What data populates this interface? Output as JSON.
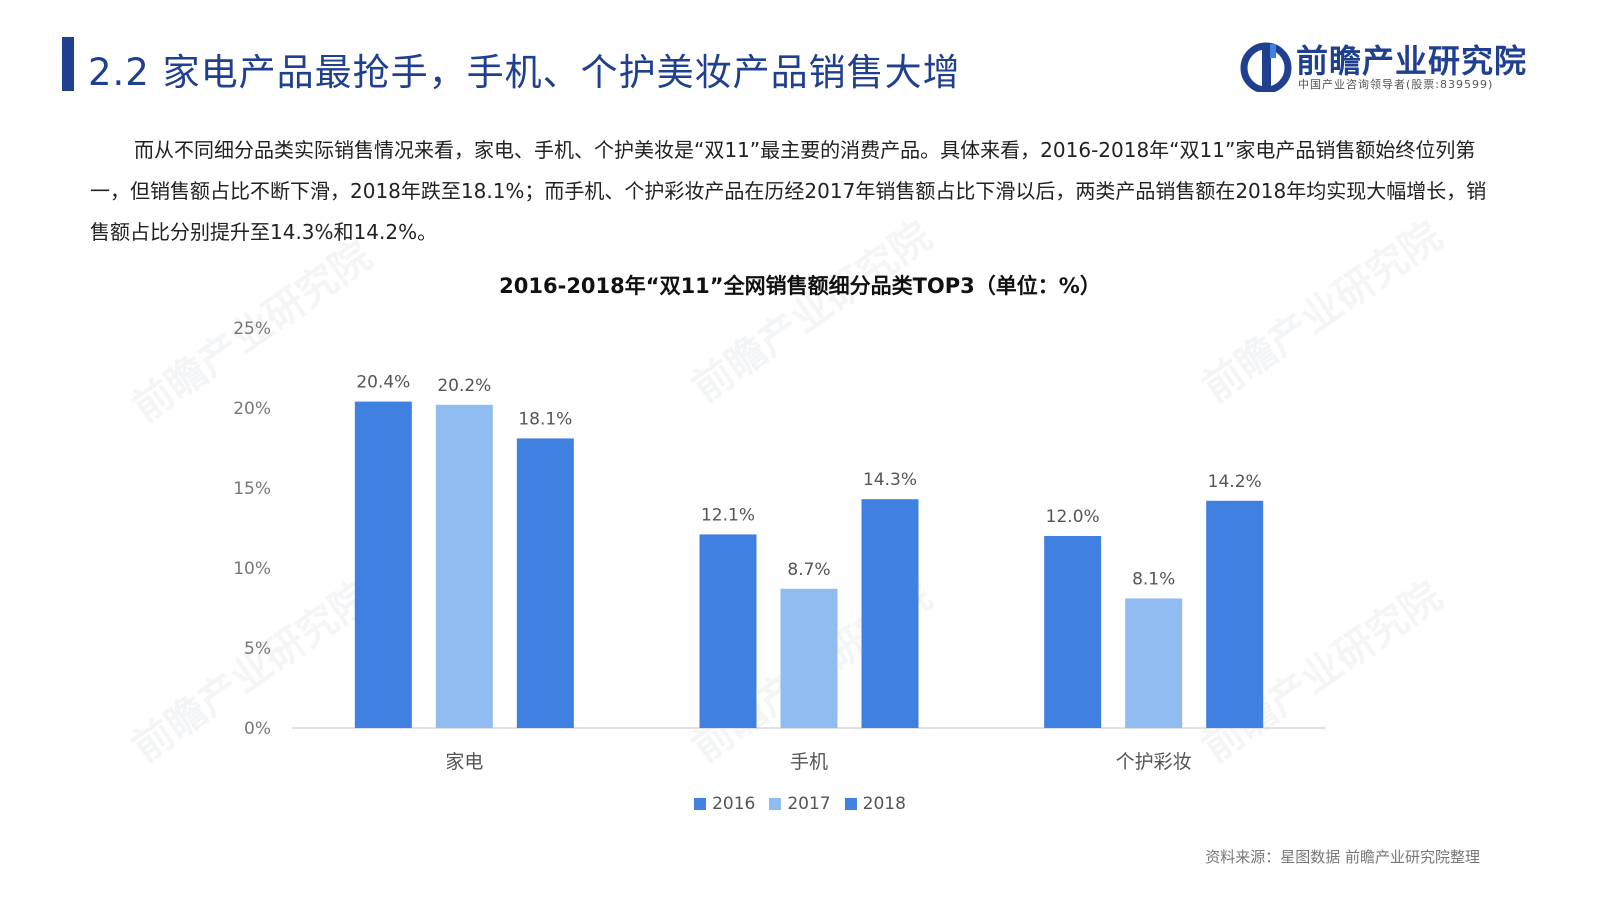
{
  "header": {
    "title": "2.2 家电产品最抢手，手机、个护美妆产品销售大增",
    "logo_name": "前瞻产业研究院",
    "logo_sub": "中国产业咨询领导者(股票:839599)"
  },
  "intro": "而从不同细分品类实际销售情况来看，家电、手机、个护美妆是“双11”最主要的消费产品。具体来看，2016-2018年“双11”家电产品销售额始终位列第一，但销售额占比不断下滑，2018年跌至18.1%；而手机、个护彩妆产品在历经2017年销售额占比下滑以后，两类产品销售额在2018年均实现大幅增长，销售额占比分别提升至14.3%和14.2%。",
  "source": "资料来源：星图数据 前瞻产业研究院整理",
  "colors": {
    "brand": "#1f3f8f",
    "s2016": "#3f80e1",
    "s2017": "#91bcf2",
    "s2018": "#3f80e1"
  },
  "chart_data": {
    "type": "bar",
    "title": "2016-2018年“双11”全网销售额细分品类TOP3（单位：%）",
    "categories": [
      "家电",
      "手机",
      "个护彩妆"
    ],
    "series": [
      {
        "name": "2016",
        "values": [
          20.4,
          12.1,
          12.0
        ],
        "labels": [
          "20.4%",
          "12.1%",
          "12.0%"
        ]
      },
      {
        "name": "2017",
        "values": [
          20.2,
          8.7,
          8.1
        ],
        "labels": [
          "20.2%",
          "8.7%",
          "8.1%"
        ]
      },
      {
        "name": "2018",
        "values": [
          18.1,
          14.3,
          14.2
        ],
        "labels": [
          "18.1%",
          "14.3%",
          "14.2%"
        ]
      }
    ],
    "ylim": [
      0,
      25
    ],
    "yticks": [
      "0%",
      "5%",
      "10%",
      "15%",
      "20%",
      "25%"
    ],
    "legend": "bottom-center",
    "grid": false
  }
}
